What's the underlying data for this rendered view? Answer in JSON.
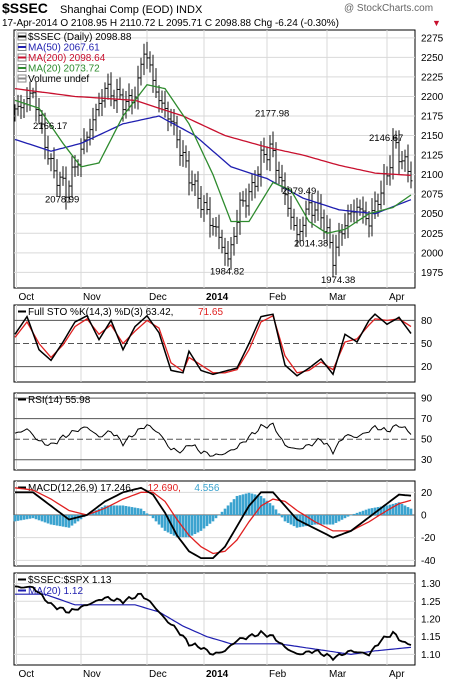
{
  "header": {
    "symbol_title": "$SSEC",
    "name": "Shanghai Comp (EOD)",
    "type": "INDX",
    "watermark": "@ StockCharts.com",
    "ohlc_line": "17-Apr-2014     O 2108.95  H 2110.72  L 2095.71  C 2098.88  Chg -6.24 (-0.30%)",
    "down_arrow": "▼"
  },
  "colors": {
    "price_bars": "#111111",
    "ma50": "#1f1fb0",
    "ma200": "#c8102e",
    "ma20": "#2e8b2e",
    "sto_k": "#000000",
    "sto_d": "#e02020",
    "rsi": "#000000",
    "macd": "#000000",
    "macd_signal": "#e02020",
    "histogram": "#3ba3cf",
    "ratio": "#000000",
    "ratio_ma": "#1f1fb0",
    "grid": "#d9d9d9"
  },
  "x_axis": {
    "months": [
      "Oct",
      "Nov",
      "Dec",
      "2014",
      "Feb",
      "Mar",
      "Apr"
    ],
    "month_positions": [
      0.5,
      22,
      44,
      63,
      84,
      104,
      124
    ]
  },
  "chart_data": [
    {
      "panel": "price",
      "type": "ohlc",
      "legend": [
        {
          "label": "$SSEC (Daily) 2098.88",
          "key": "price"
        },
        {
          "label": "MA(50) 2067.61",
          "key": "ma50"
        },
        {
          "label": "MA(200) 2098.64",
          "key": "ma200"
        },
        {
          "label": "MA(20) 2073.72",
          "key": "ma20"
        },
        {
          "label": "Volume undef",
          "key": "volume"
        }
      ],
      "y_ticks": [
        1975,
        2000,
        2025,
        2050,
        2075,
        2100,
        2125,
        2150,
        2175,
        2200,
        2225,
        2250,
        2275
      ],
      "ylim": [
        1955,
        2285
      ],
      "closes_anchor": [
        [
          0,
          2180
        ],
        [
          6,
          2205
        ],
        [
          12,
          2110
        ],
        [
          17,
          2080
        ],
        [
          22,
          2130
        ],
        [
          26,
          2170
        ],
        [
          30,
          2210
        ],
        [
          38,
          2190
        ],
        [
          41,
          2215
        ],
        [
          43,
          2262
        ],
        [
          48,
          2195
        ],
        [
          52,
          2170
        ],
        [
          57,
          2110
        ],
        [
          60,
          2080
        ],
        [
          64,
          2050
        ],
        [
          68,
          2020
        ],
        [
          71,
          1990
        ],
        [
          75,
          2060
        ],
        [
          79,
          2080
        ],
        [
          82,
          2120
        ],
        [
          85,
          2135
        ],
        [
          88,
          2100
        ],
        [
          91,
          2060
        ],
        [
          94,
          2020
        ],
        [
          98,
          2060
        ],
        [
          102,
          2050
        ],
        [
          106,
          1995
        ],
        [
          110,
          2040
        ],
        [
          114,
          2060
        ],
        [
          118,
          2040
        ],
        [
          121,
          2070
        ],
        [
          124,
          2100
        ],
        [
          126,
          2140
        ],
        [
          129,
          2120
        ],
        [
          132,
          2099
        ]
      ],
      "ma50_anchor": [
        [
          0,
          2145
        ],
        [
          12,
          2130
        ],
        [
          22,
          2140
        ],
        [
          36,
          2165
        ],
        [
          48,
          2175
        ],
        [
          60,
          2150
        ],
        [
          72,
          2110
        ],
        [
          84,
          2095
        ],
        [
          96,
          2070
        ],
        [
          108,
          2055
        ],
        [
          120,
          2050
        ],
        [
          132,
          2068
        ]
      ],
      "ma200_anchor": [
        [
          0,
          2210
        ],
        [
          20,
          2200
        ],
        [
          40,
          2195
        ],
        [
          56,
          2175
        ],
        [
          70,
          2150
        ],
        [
          84,
          2135
        ],
        [
          96,
          2125
        ],
        [
          108,
          2112
        ],
        [
          120,
          2102
        ],
        [
          132,
          2099
        ]
      ],
      "ma20_anchor": [
        [
          0,
          2195
        ],
        [
          8,
          2185
        ],
        [
          16,
          2140
        ],
        [
          22,
          2110
        ],
        [
          28,
          2115
        ],
        [
          36,
          2175
        ],
        [
          44,
          2215
        ],
        [
          50,
          2210
        ],
        [
          58,
          2165
        ],
        [
          66,
          2100
        ],
        [
          72,
          2040
        ],
        [
          78,
          2040
        ],
        [
          86,
          2090
        ],
        [
          92,
          2080
        ],
        [
          98,
          2040
        ],
        [
          104,
          2025
        ],
        [
          110,
          2030
        ],
        [
          118,
          2050
        ],
        [
          126,
          2058
        ],
        [
          132,
          2074
        ]
      ],
      "annotations": [
        {
          "text": "2166.17",
          "x": 12,
          "y": 2162
        },
        {
          "text": "2078.99",
          "x": 16,
          "y": 2068
        },
        {
          "text": "2177.98",
          "x": 86,
          "y": 2178
        },
        {
          "text": "2079.49",
          "x": 95,
          "y": 2079
        },
        {
          "text": "1984.82",
          "x": 71,
          "y": 1976
        },
        {
          "text": "2014.38",
          "x": 99,
          "y": 2012
        },
        {
          "text": "1974.38",
          "x": 108,
          "y": 1965
        },
        {
          "text": "2146.67",
          "x": 124,
          "y": 2147
        }
      ]
    },
    {
      "panel": "sto",
      "type": "line",
      "legend": [
        {
          "label": "Full STO %K(14,3) %D(3) 63.42,",
          "key": "sto_k"
        },
        {
          "label": " 71.65",
          "key": "sto_d"
        }
      ],
      "y_ticks": [
        20,
        50,
        80
      ],
      "ylim": [
        0,
        100
      ],
      "k_anchor": [
        [
          0,
          62
        ],
        [
          4,
          85
        ],
        [
          8,
          42
        ],
        [
          12,
          28
        ],
        [
          16,
          52
        ],
        [
          20,
          78
        ],
        [
          24,
          86
        ],
        [
          28,
          55
        ],
        [
          32,
          80
        ],
        [
          36,
          42
        ],
        [
          40,
          72
        ],
        [
          44,
          86
        ],
        [
          48,
          64
        ],
        [
          52,
          15
        ],
        [
          56,
          12
        ],
        [
          58,
          40
        ],
        [
          62,
          15
        ],
        [
          66,
          10
        ],
        [
          70,
          14
        ],
        [
          74,
          18
        ],
        [
          78,
          50
        ],
        [
          82,
          85
        ],
        [
          86,
          88
        ],
        [
          90,
          22
        ],
        [
          94,
          8
        ],
        [
          98,
          18
        ],
        [
          102,
          30
        ],
        [
          106,
          10
        ],
        [
          110,
          62
        ],
        [
          114,
          52
        ],
        [
          118,
          80
        ],
        [
          120,
          88
        ],
        [
          124,
          75
        ],
        [
          128,
          84
        ],
        [
          132,
          63
        ]
      ],
      "d_anchor": [
        [
          0,
          58
        ],
        [
          4,
          78
        ],
        [
          8,
          50
        ],
        [
          12,
          32
        ],
        [
          16,
          48
        ],
        [
          20,
          72
        ],
        [
          24,
          82
        ],
        [
          28,
          62
        ],
        [
          32,
          74
        ],
        [
          36,
          50
        ],
        [
          40,
          66
        ],
        [
          44,
          80
        ],
        [
          48,
          70
        ],
        [
          52,
          25
        ],
        [
          56,
          14
        ],
        [
          58,
          32
        ],
        [
          62,
          22
        ],
        [
          66,
          12
        ],
        [
          70,
          12
        ],
        [
          74,
          16
        ],
        [
          78,
          42
        ],
        [
          82,
          78
        ],
        [
          86,
          86
        ],
        [
          90,
          34
        ],
        [
          94,
          12
        ],
        [
          98,
          15
        ],
        [
          102,
          26
        ],
        [
          106,
          16
        ],
        [
          110,
          52
        ],
        [
          114,
          56
        ],
        [
          118,
          74
        ],
        [
          120,
          82
        ],
        [
          124,
          80
        ],
        [
          128,
          82
        ],
        [
          132,
          72
        ]
      ]
    },
    {
      "panel": "rsi",
      "type": "line",
      "legend": [
        {
          "label": "RSI(14) 55.98",
          "key": "rsi"
        }
      ],
      "y_ticks": [
        30,
        50,
        70,
        90
      ],
      "ylim": [
        20,
        95
      ],
      "anchor": [
        [
          0,
          55
        ],
        [
          4,
          60
        ],
        [
          8,
          48
        ],
        [
          12,
          44
        ],
        [
          16,
          52
        ],
        [
          20,
          58
        ],
        [
          24,
          62
        ],
        [
          28,
          52
        ],
        [
          32,
          58
        ],
        [
          36,
          46
        ],
        [
          40,
          56
        ],
        [
          44,
          64
        ],
        [
          48,
          56
        ],
        [
          52,
          40
        ],
        [
          56,
          38
        ],
        [
          58,
          46
        ],
        [
          62,
          38
        ],
        [
          66,
          34
        ],
        [
          70,
          36
        ],
        [
          74,
          42
        ],
        [
          78,
          52
        ],
        [
          82,
          62
        ],
        [
          86,
          64
        ],
        [
          90,
          44
        ],
        [
          94,
          40
        ],
        [
          98,
          44
        ],
        [
          102,
          50
        ],
        [
          106,
          38
        ],
        [
          110,
          54
        ],
        [
          114,
          52
        ],
        [
          118,
          58
        ],
        [
          120,
          62
        ],
        [
          124,
          58
        ],
        [
          128,
          64
        ],
        [
          132,
          56
        ]
      ]
    },
    {
      "panel": "macd",
      "type": "line+histogram",
      "legend": [
        {
          "label": "MACD(12,26,9) 17.246,",
          "key": "macd"
        },
        {
          "label": " 12.690,",
          "key": "macd_signal"
        },
        {
          "label": " 4.556",
          "key": "histogram"
        }
      ],
      "y_ticks": [
        -40,
        -20,
        0,
        20
      ],
      "ylim": [
        -45,
        30
      ],
      "macd_anchor": [
        [
          0,
          20
        ],
        [
          6,
          20
        ],
        [
          12,
          8
        ],
        [
          18,
          -4
        ],
        [
          24,
          0
        ],
        [
          30,
          12
        ],
        [
          36,
          20
        ],
        [
          42,
          24
        ],
        [
          46,
          18
        ],
        [
          50,
          2
        ],
        [
          54,
          -18
        ],
        [
          58,
          -32
        ],
        [
          62,
          -38
        ],
        [
          66,
          -38
        ],
        [
          70,
          -28
        ],
        [
          74,
          -10
        ],
        [
          78,
          8
        ],
        [
          82,
          20
        ],
        [
          86,
          20
        ],
        [
          90,
          8
        ],
        [
          94,
          -4
        ],
        [
          100,
          -12
        ],
        [
          106,
          -20
        ],
        [
          112,
          -14
        ],
        [
          118,
          -2
        ],
        [
          124,
          10
        ],
        [
          128,
          18
        ],
        [
          132,
          17
        ]
      ],
      "signal_anchor": [
        [
          0,
          24
        ],
        [
          6,
          22
        ],
        [
          12,
          14
        ],
        [
          18,
          4
        ],
        [
          24,
          0
        ],
        [
          30,
          6
        ],
        [
          36,
          14
        ],
        [
          42,
          20
        ],
        [
          46,
          20
        ],
        [
          50,
          12
        ],
        [
          54,
          -4
        ],
        [
          58,
          -18
        ],
        [
          62,
          -28
        ],
        [
          66,
          -34
        ],
        [
          70,
          -32
        ],
        [
          74,
          -22
        ],
        [
          78,
          -6
        ],
        [
          82,
          8
        ],
        [
          86,
          14
        ],
        [
          90,
          12
        ],
        [
          94,
          4
        ],
        [
          100,
          -6
        ],
        [
          106,
          -14
        ],
        [
          112,
          -14
        ],
        [
          118,
          -6
        ],
        [
          124,
          4
        ],
        [
          128,
          10
        ],
        [
          132,
          13
        ]
      ]
    },
    {
      "panel": "ratio",
      "type": "line",
      "legend": [
        {
          "label": "$SSEC:$SPX 1.13",
          "key": "ratio"
        },
        {
          "label": "MA(20) 1.12",
          "key": "ratio_ma"
        }
      ],
      "y_ticks": [
        1.1,
        1.15,
        1.2,
        1.25,
        1.3
      ],
      "ylim": [
        1.07,
        1.33
      ],
      "ratio_anchor": [
        [
          0,
          1.29
        ],
        [
          6,
          1.29
        ],
        [
          12,
          1.24
        ],
        [
          18,
          1.22
        ],
        [
          24,
          1.24
        ],
        [
          30,
          1.26
        ],
        [
          36,
          1.25
        ],
        [
          42,
          1.27
        ],
        [
          46,
          1.24
        ],
        [
          50,
          1.2
        ],
        [
          54,
          1.17
        ],
        [
          58,
          1.13
        ],
        [
          62,
          1.12
        ],
        [
          66,
          1.1
        ],
        [
          70,
          1.11
        ],
        [
          74,
          1.14
        ],
        [
          78,
          1.15
        ],
        [
          82,
          1.16
        ],
        [
          86,
          1.15
        ],
        [
          90,
          1.12
        ],
        [
          94,
          1.1
        ],
        [
          100,
          1.11
        ],
        [
          106,
          1.09
        ],
        [
          112,
          1.11
        ],
        [
          118,
          1.1
        ],
        [
          122,
          1.14
        ],
        [
          126,
          1.16
        ],
        [
          130,
          1.13
        ],
        [
          132,
          1.13
        ]
      ],
      "ma_anchor": [
        [
          0,
          1.27
        ],
        [
          10,
          1.27
        ],
        [
          20,
          1.24
        ],
        [
          30,
          1.24
        ],
        [
          40,
          1.24
        ],
        [
          48,
          1.22
        ],
        [
          56,
          1.18
        ],
        [
          64,
          1.15
        ],
        [
          72,
          1.13
        ],
        [
          80,
          1.13
        ],
        [
          88,
          1.13
        ],
        [
          96,
          1.12
        ],
        [
          104,
          1.11
        ],
        [
          112,
          1.1
        ],
        [
          120,
          1.11
        ],
        [
          132,
          1.12
        ]
      ]
    }
  ]
}
